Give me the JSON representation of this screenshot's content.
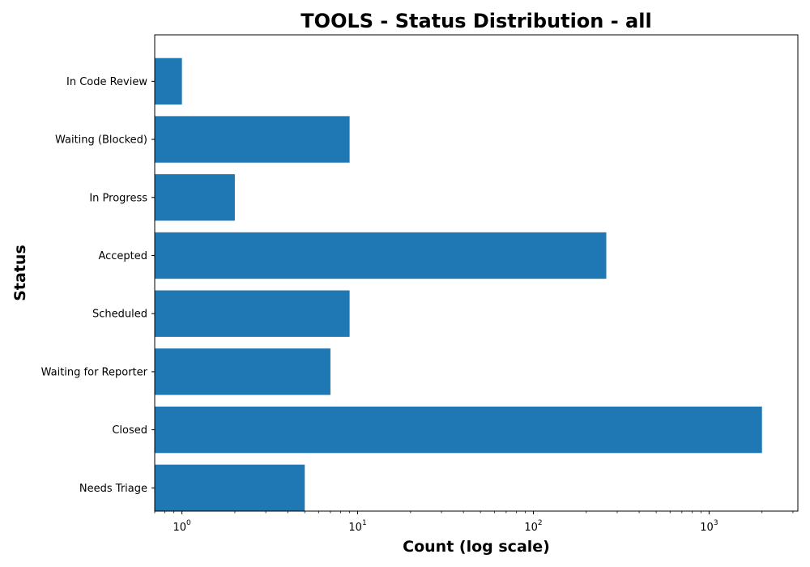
{
  "chart_data": {
    "type": "bar",
    "orientation": "horizontal",
    "title": "TOOLS - Status Distribution - all",
    "xlabel": "Count (log scale)",
    "ylabel": "Status",
    "xscale": "log",
    "xlim": [
      0.7,
      3200
    ],
    "x_ticks": [
      {
        "value": 1,
        "base": "10",
        "exp": "0"
      },
      {
        "value": 10,
        "base": "10",
        "exp": "1"
      },
      {
        "value": 100,
        "base": "10",
        "exp": "2"
      },
      {
        "value": 1000,
        "base": "10",
        "exp": "3"
      }
    ],
    "categories": [
      "In Code Review",
      "Waiting (Blocked)",
      "In Progress",
      "Accepted",
      "Scheduled",
      "Waiting for Reporter",
      "Closed",
      "Needs Triage"
    ],
    "values": [
      1,
      9,
      2,
      260,
      9,
      7,
      2000,
      5
    ],
    "bar_color": "#1f77b4",
    "grid": false,
    "legend": "none"
  }
}
